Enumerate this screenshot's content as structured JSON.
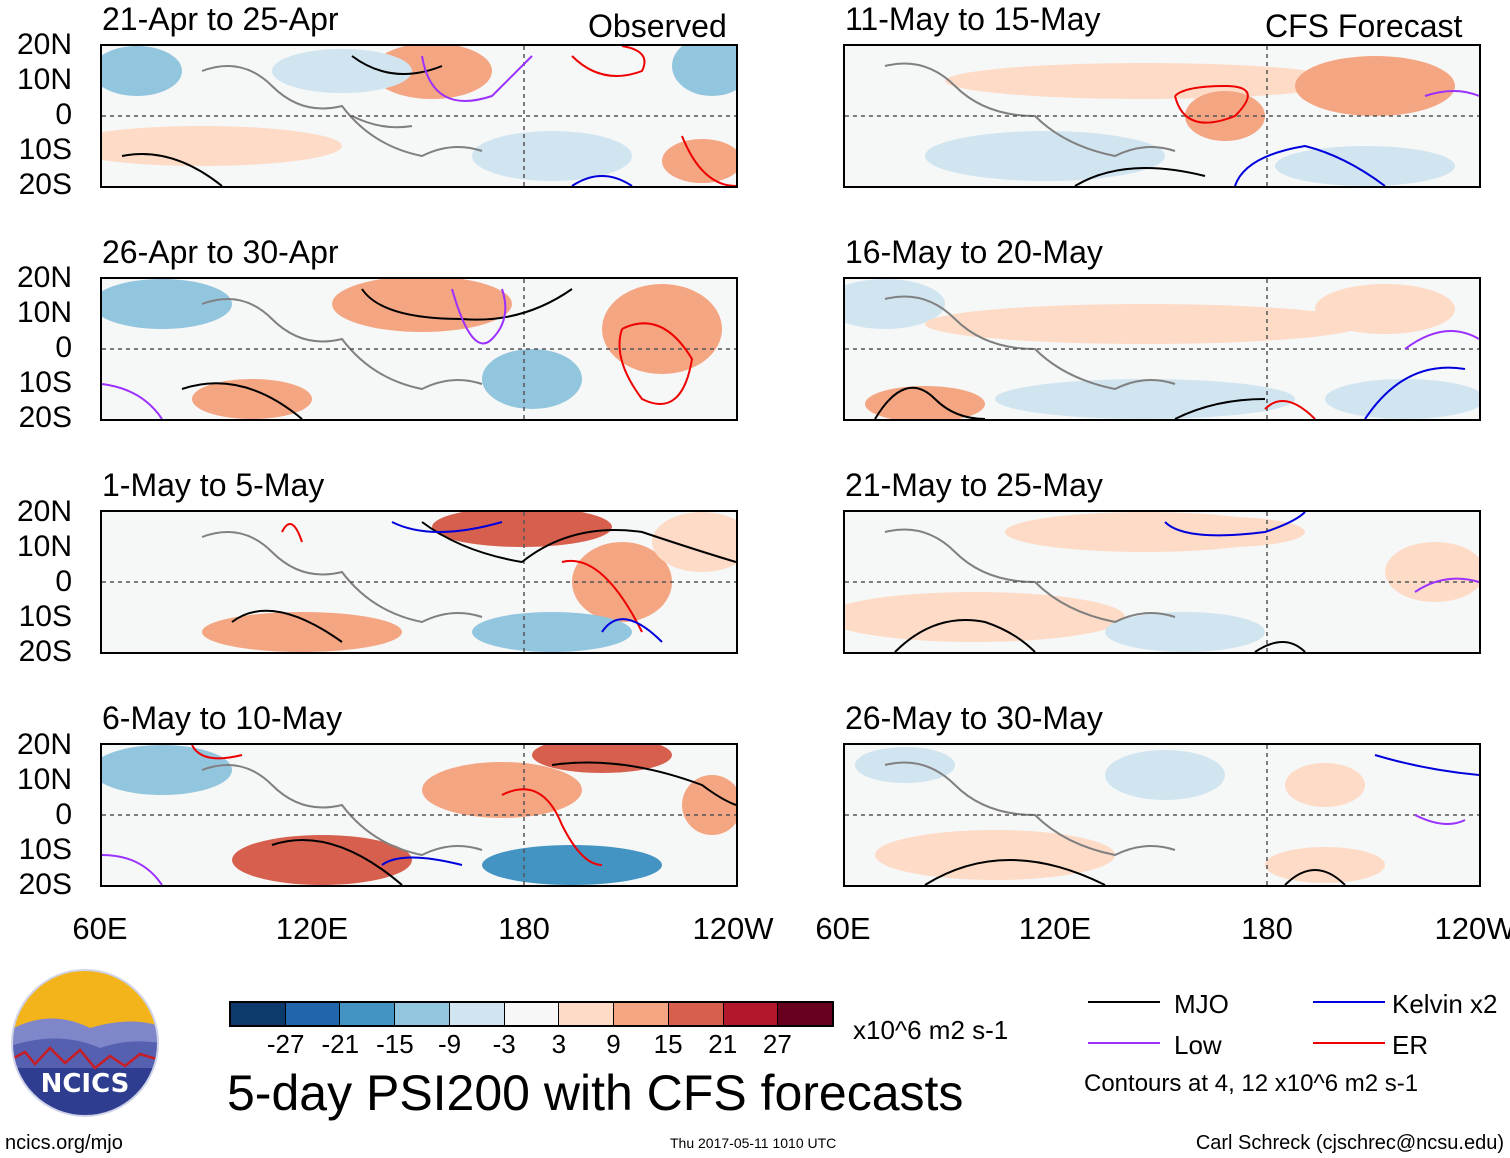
{
  "left_header": "Observed",
  "right_header": "CFS Forecast",
  "latitude_labels": [
    "20N",
    "10N",
    "0",
    "10S",
    "20S"
  ],
  "longitude_labels": [
    "60E",
    "120E",
    "180",
    "120W"
  ],
  "observed_panels": [
    {
      "title": "21-Apr to 25-Apr"
    },
    {
      "title": "26-Apr to 30-Apr"
    },
    {
      "title": "1-May to 5-May"
    },
    {
      "title": "6-May to 10-May"
    }
  ],
  "forecast_panels": [
    {
      "title": "11-May to 15-May"
    },
    {
      "title": "16-May to 20-May"
    },
    {
      "title": "21-May to 25-May"
    },
    {
      "title": "26-May to 30-May"
    }
  ],
  "colorbar": {
    "ticks": [
      "-27",
      "-21",
      "-15",
      "-9",
      "-3",
      "3",
      "9",
      "15",
      "21",
      "27"
    ],
    "colors": [
      "#0b3a6b",
      "#2166ac",
      "#4393c3",
      "#92c5de",
      "#d1e5f0",
      "#f7f7f7",
      "#fddbc7",
      "#f4a582",
      "#d6604d",
      "#b2182b",
      "#67001f"
    ],
    "units": "x10^6 m2 s-1"
  },
  "legend": {
    "items": [
      {
        "label": "MJO",
        "color": "#000000"
      },
      {
        "label": "Kelvin x2",
        "color": "#0000dd"
      },
      {
        "label": "Low",
        "color": "#9b30ff"
      },
      {
        "label": "ER",
        "color": "#ee0000"
      }
    ],
    "note": "Contours at 4, 12 x10^6 m2 s-1"
  },
  "logo_text": "NCICS",
  "main_title": "5-day PSI200 with CFS forecasts",
  "url": "ncics.org/mjo",
  "timestamp": "Thu 2017-05-11 1010 UTC",
  "credit": "Carl Schreck (cjschrec@ncsu.edu)"
}
